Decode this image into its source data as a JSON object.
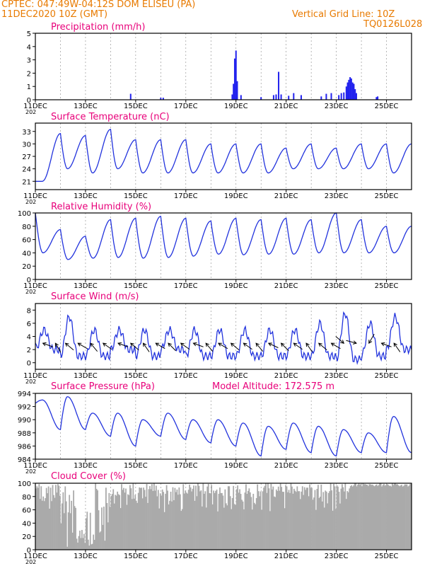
{
  "header": {
    "line1": "CPTEC:   047:49W-04:12S   DOM ELISEU (PA)",
    "line2": "11DEC2020 10Z (GMT)",
    "grid_note": "Vertical Grid Line: 10Z",
    "code": "TQ0126L028"
  },
  "colors": {
    "header": "#e87a00",
    "title": "#e8007a",
    "line": "#2233dd",
    "bar": "#2222ee",
    "cloud": "#aaaaaa",
    "arrow": "#000000"
  },
  "x_labels": [
    "11DEC",
    "13DEC",
    "15DEC",
    "17DEC",
    "19DEC",
    "21DEC",
    "23DEC",
    "25DEC"
  ],
  "year_stub": "202",
  "chart_data": [
    {
      "type": "bar",
      "title": "Precipitation (mm/h)",
      "ylim": [
        0,
        5
      ],
      "yticks": [
        "0",
        "1",
        "2",
        "3",
        "4",
        "5"
      ],
      "x_unit": "days since 11DEC 10Z",
      "bars": [
        [
          3.8,
          0.45
        ],
        [
          5.0,
          0.15
        ],
        [
          5.1,
          0.15
        ],
        [
          7.85,
          0.4
        ],
        [
          7.9,
          1.2
        ],
        [
          7.95,
          3.1
        ],
        [
          8.0,
          3.7
        ],
        [
          8.05,
          1.4
        ],
        [
          8.2,
          0.35
        ],
        [
          9.0,
          0.2
        ],
        [
          9.5,
          0.35
        ],
        [
          9.6,
          0.4
        ],
        [
          9.7,
          2.1
        ],
        [
          9.8,
          0.4
        ],
        [
          10.1,
          0.3
        ],
        [
          10.3,
          0.5
        ],
        [
          10.6,
          0.35
        ],
        [
          11.4,
          0.25
        ],
        [
          11.6,
          0.45
        ],
        [
          11.8,
          0.5
        ],
        [
          12.1,
          0.35
        ],
        [
          12.2,
          0.5
        ],
        [
          12.3,
          0.55
        ],
        [
          12.4,
          1.0
        ],
        [
          12.45,
          1.3
        ],
        [
          12.5,
          1.5
        ],
        [
          12.55,
          1.7
        ],
        [
          12.6,
          1.6
        ],
        [
          12.65,
          1.3
        ],
        [
          12.7,
          1.2
        ],
        [
          12.75,
          0.8
        ],
        [
          12.8,
          0.5
        ],
        [
          13.6,
          0.2
        ],
        [
          13.65,
          0.25
        ]
      ]
    },
    {
      "type": "line",
      "title": "Surface Temperature (nC)",
      "ylim": [
        19,
        35
      ],
      "yticks": [
        "21",
        "24",
        "27",
        "30",
        "33"
      ],
      "x_unit": "days since 11DEC 10Z",
      "daily": [
        [
          21,
          31
        ],
        [
          24,
          32.5
        ],
        [
          23,
          32
        ],
        [
          24,
          33.5
        ],
        [
          23,
          31
        ],
        [
          23,
          31
        ],
        [
          23,
          31
        ],
        [
          23,
          30
        ],
        [
          23,
          30
        ],
        [
          23,
          30
        ],
        [
          24,
          29
        ],
        [
          24,
          30
        ],
        [
          24,
          29
        ],
        [
          24,
          30
        ],
        [
          23,
          30
        ]
      ],
      "start": 21
    },
    {
      "type": "line",
      "title": "Relative Humidity (%)",
      "ylim": [
        0,
        100
      ],
      "yticks": [
        "0",
        "20",
        "40",
        "60",
        "80",
        "100"
      ],
      "x_unit": "days since 11DEC 10Z",
      "daily": [
        [
          100,
          40
        ],
        [
          75,
          30
        ],
        [
          65,
          32
        ],
        [
          90,
          33
        ],
        [
          92,
          32
        ],
        [
          95,
          33
        ],
        [
          92,
          35
        ],
        [
          88,
          38
        ],
        [
          92,
          37
        ],
        [
          90,
          38
        ],
        [
          92,
          38
        ],
        [
          90,
          40
        ],
        [
          100,
          40
        ],
        [
          90,
          40
        ],
        [
          80,
          40
        ]
      ],
      "start": 100
    },
    {
      "type": "line",
      "title": "Surface Wind (m/s)",
      "ylim": [
        -1,
        9
      ],
      "yticks": [
        "0",
        "2",
        "4",
        "6",
        "8"
      ],
      "x_unit": "days since 11DEC 10Z",
      "daily": [
        [
          5,
          2
        ],
        [
          7,
          1
        ],
        [
          5,
          1
        ],
        [
          5,
          2
        ],
        [
          5,
          1
        ],
        [
          5,
          2
        ],
        [
          5,
          1
        ],
        [
          5,
          1
        ],
        [
          5,
          1
        ],
        [
          5,
          1
        ],
        [
          5,
          1
        ],
        [
          6,
          1
        ],
        [
          7.5,
          0.5
        ],
        [
          6,
          1
        ],
        [
          7,
          2
        ],
        [
          6,
          2
        ]
      ],
      "start": 3,
      "arrows_x": [
        0.3,
        0.8,
        1.2,
        1.7,
        2.2,
        2.7,
        3.3,
        3.8,
        4.3,
        4.8,
        5.3,
        5.8,
        6.3,
        6.8,
        7.3,
        7.8,
        8.3,
        8.8,
        9.3,
        9.8,
        10.3,
        10.8,
        11.3,
        11.8,
        12.3,
        12.8,
        13.3,
        13.8,
        14.3
      ],
      "arrows_dir": [
        200,
        240,
        220,
        210,
        230,
        215,
        200,
        220,
        235,
        210,
        225,
        215,
        200,
        230,
        210,
        220,
        215,
        230,
        205,
        225,
        215,
        235,
        220,
        210,
        40,
        15,
        120,
        200,
        235
      ]
    },
    {
      "type": "line",
      "title": "Surface Pressure (hPa)",
      "annotation": "Model Altitude: 172.575  m",
      "ylim": [
        984,
        994
      ],
      "yticks": [
        "984",
        "986",
        "988",
        "990",
        "992",
        "994"
      ],
      "x_unit": "days since 11DEC 10Z",
      "daily": [
        [
          993,
          989
        ],
        [
          993.5,
          988.5
        ],
        [
          991,
          988.5
        ],
        [
          991,
          987.5
        ],
        [
          990,
          986
        ],
        [
          991,
          987.5
        ],
        [
          990,
          987
        ],
        [
          990,
          986.5
        ],
        [
          989.5,
          986
        ],
        [
          989,
          984.5
        ],
        [
          989.5,
          985.5
        ],
        [
          989,
          985
        ],
        [
          988.5,
          984.5
        ],
        [
          988,
          985
        ],
        [
          990.5,
          985
        ],
        [
          988,
          985
        ]
      ],
      "start": 992.5
    },
    {
      "type": "bar",
      "title": "Cloud Cover (%)",
      "ylim": [
        0,
        100
      ],
      "yticks": [
        "0",
        "20",
        "40",
        "60",
        "80",
        "100"
      ],
      "x_unit": "days since 11DEC 10Z",
      "daily_min": [
        60,
        0,
        2,
        55,
        60,
        55,
        60,
        55,
        50,
        58,
        60,
        58,
        62,
        70,
        75
      ]
    }
  ]
}
